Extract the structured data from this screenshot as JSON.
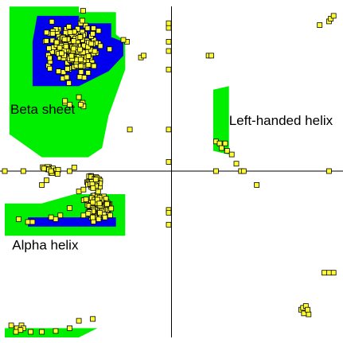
{
  "chart_data": {
    "type": "scatter",
    "title": "",
    "xlabel": "",
    "ylabel": "",
    "xlim": [
      -180,
      180
    ],
    "ylim": [
      -180,
      180
    ],
    "grid": false,
    "axes": "cross-at-origin",
    "colors": {
      "allowed_region": "#00ee00",
      "favored_region": "#0000ee",
      "point_fill": "#ffff33",
      "point_edge": "#000000",
      "axis": "#000000"
    },
    "annotations": [
      {
        "id": "beta",
        "text": "Beta sheet",
        "x": -174,
        "y": 62
      },
      {
        "id": "alpha",
        "text": "Alpha helix",
        "x": -172,
        "y": -85
      },
      {
        "id": "lefthanded",
        "text": "Left-handed helix",
        "x": 62,
        "y": 50
      }
    ],
    "regions": [
      {
        "kind": "allowed",
        "points": [
          [
            -175,
            178
          ],
          [
            -100,
            178
          ],
          [
            -100,
            172
          ],
          [
            -60,
            172
          ],
          [
            -60,
            148
          ],
          [
            -50,
            140
          ],
          [
            -50,
            110
          ],
          [
            -68,
            60
          ],
          [
            -75,
            25
          ],
          [
            -90,
            15
          ],
          [
            -140,
            15
          ],
          [
            -175,
            40
          ]
        ]
      },
      {
        "kind": "favored",
        "points": [
          [
            -145,
            168
          ],
          [
            -100,
            168
          ],
          [
            -100,
            160
          ],
          [
            -65,
            160
          ],
          [
            -65,
            145
          ],
          [
            -52,
            140
          ],
          [
            -52,
            125
          ],
          [
            -68,
            108
          ],
          [
            -100,
            92
          ],
          [
            -150,
            92
          ],
          [
            -150,
            140
          ]
        ]
      },
      {
        "kind": "allowed",
        "points": [
          [
            -180,
            -35
          ],
          [
            -140,
            -35
          ],
          [
            -105,
            -25
          ],
          [
            -50,
            -25
          ],
          [
            -50,
            -70
          ],
          [
            -180,
            -70
          ]
        ]
      },
      {
        "kind": "favored",
        "points": [
          [
            -155,
            -50
          ],
          [
            -60,
            -50
          ],
          [
            -60,
            -60
          ],
          [
            -155,
            -60
          ]
        ]
      },
      {
        "kind": "allowed",
        "points": [
          [
            45,
            88
          ],
          [
            62,
            92
          ],
          [
            62,
            18
          ],
          [
            45,
            22
          ]
        ]
      },
      {
        "kind": "allowed",
        "points": [
          [
            -180,
            -170
          ],
          [
            -80,
            -170
          ],
          [
            -100,
            -180
          ],
          [
            -180,
            -180
          ]
        ]
      }
    ],
    "series": [
      {
        "clusters": [
          {
            "cx": -104,
            "cy": 132,
            "sx": 22,
            "sy": 20,
            "n": 260
          },
          {
            "cx": -78,
            "cy": -40,
            "sx": 10,
            "sy": 11,
            "n": 160
          },
          {
            "cx": -85,
            "cy": -12,
            "sx": 6,
            "sy": 6,
            "n": 40
          },
          {
            "cx": -130,
            "cy": 2,
            "sx": 10,
            "sy": 3,
            "n": 12
          }
        ],
        "points": [
          [
            -122,
            108
          ],
          [
            -100,
            80
          ],
          [
            -110,
            72
          ],
          [
            -115,
            74
          ],
          [
            -115,
            76
          ],
          [
            -96,
            74
          ],
          [
            -95,
            70
          ],
          [
            -98,
            72
          ],
          [
            -135,
            150
          ],
          [
            -48,
            140
          ],
          [
            -52,
            142
          ],
          [
            -33,
            123
          ],
          [
            -30,
            125
          ],
          [
            40,
            125
          ],
          [
            43,
            125
          ],
          [
            -3,
            155
          ],
          [
            -3,
            160
          ],
          [
            -3,
            140
          ],
          [
            -3,
            130
          ],
          [
            -3,
            110
          ],
          [
            -3,
            45
          ],
          [
            -3,
            10
          ],
          [
            -3,
            -42
          ],
          [
            -3,
            -45
          ],
          [
            -3,
            -58
          ],
          [
            48,
            32
          ],
          [
            52,
            30
          ],
          [
            54,
            25
          ],
          [
            60,
            22
          ],
          [
            65,
            18
          ],
          [
            58,
            30
          ],
          [
            70,
            8
          ],
          [
            48,
            0
          ],
          [
            75,
            0
          ],
          [
            78,
            0
          ],
          [
            -180,
            0
          ],
          [
            -160,
            0
          ],
          [
            -130,
            0
          ],
          [
            -110,
            0
          ],
          [
            -105,
            4
          ],
          [
            -123,
            -3
          ],
          [
            -135,
            -10
          ],
          [
            -140,
            -15
          ],
          [
            -110,
            -40
          ],
          [
            -120,
            -48
          ],
          [
            -125,
            -52
          ],
          [
            -165,
            -52
          ],
          [
            -155,
            -55
          ],
          [
            -150,
            -55
          ],
          [
            -130,
            -50
          ],
          [
            -95,
            -48
          ],
          [
            -90,
            -46
          ],
          [
            -85,
            -50
          ],
          [
            -100,
            -22
          ],
          [
            -95,
            -20
          ],
          [
            92,
            -15
          ],
          [
            170,
            0
          ],
          [
            160,
            158
          ],
          [
            170,
            162
          ],
          [
            172,
            165
          ],
          [
            175,
            168
          ],
          [
            165,
            -110
          ],
          [
            170,
            -110
          ],
          [
            175,
            -110
          ],
          [
            140,
            -150
          ],
          [
            145,
            -152
          ],
          [
            148,
            -155
          ],
          [
            142,
            -148
          ],
          [
            145,
            -146
          ],
          [
            143,
            -154
          ],
          [
            147,
            -150
          ],
          [
            -173,
            -167
          ],
          [
            -167,
            -170
          ],
          [
            -162,
            -167
          ],
          [
            -160,
            -170
          ],
          [
            -163,
            -172
          ],
          [
            -168,
            -174
          ],
          [
            -152,
            -174
          ],
          [
            -140,
            -174
          ],
          [
            -125,
            -173
          ],
          [
            -110,
            -170
          ],
          [
            -100,
            -162
          ],
          [
            -85,
            -160
          ],
          [
            -45,
            45
          ]
        ]
      }
    ]
  }
}
